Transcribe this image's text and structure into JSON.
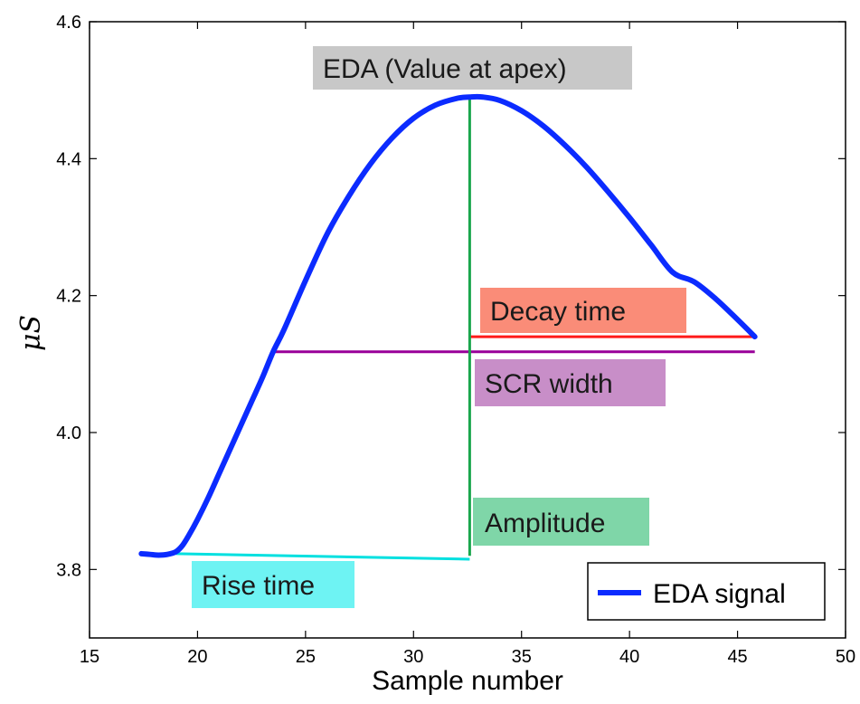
{
  "chart_data": {
    "type": "line",
    "xlabel": "Sample number",
    "ylabel": "μS",
    "xlim": [
      15,
      50
    ],
    "ylim": [
      3.7,
      4.6
    ],
    "xticks": [
      15,
      20,
      25,
      30,
      35,
      40,
      45,
      50
    ],
    "yticks": [
      3.8,
      4.0,
      4.2,
      4.4,
      4.6
    ],
    "xtick_labels": [
      "15",
      "20",
      "25",
      "30",
      "35",
      "40",
      "45",
      "50"
    ],
    "ytick_labels": [
      "3.8",
      "4.0",
      "4.2",
      "4.4",
      "4.6"
    ],
    "grid": false,
    "legend_position": "bottom-right",
    "series": [
      {
        "name": "EDA signal",
        "color": "#0b2bff",
        "x": [
          17.4,
          17.8,
          18.2,
          18.6,
          19.0,
          19.3,
          19.6,
          20.0,
          20.5,
          21.0,
          21.5,
          22.0,
          22.5,
          23.0,
          23.5,
          24.0,
          25.0,
          26.0,
          27.0,
          28.0,
          29.0,
          30.0,
          31.0,
          32.0,
          32.6,
          33.2,
          34.0,
          35.0,
          36.0,
          37.0,
          38.0,
          39.0,
          40.0,
          41.0,
          42.0,
          43.0,
          44.0,
          45.0,
          45.8
        ],
        "y": [
          3.823,
          3.822,
          3.821,
          3.822,
          3.826,
          3.835,
          3.85,
          3.873,
          3.905,
          3.94,
          3.975,
          4.01,
          4.045,
          4.08,
          4.118,
          4.15,
          4.222,
          4.29,
          4.345,
          4.392,
          4.43,
          4.459,
          4.478,
          4.488,
          4.49,
          4.49,
          4.485,
          4.47,
          4.448,
          4.42,
          4.388,
          4.352,
          4.314,
          4.274,
          4.234,
          4.22,
          4.195,
          4.165,
          4.14
        ]
      }
    ],
    "annotations": [
      {
        "id": "apex",
        "label": "EDA (Value at apex)",
        "bg": "#c8c8c8"
      },
      {
        "id": "decay",
        "label": "Decay time",
        "bg": "#fa8c78",
        "line_color": "#ff1a1a",
        "x": [
          32.6,
          45.8
        ],
        "y": [
          4.14,
          4.14
        ]
      },
      {
        "id": "width",
        "label": "SCR width",
        "bg": "#c88ec8",
        "line_color": "#990099",
        "x": [
          23.6,
          45.8
        ],
        "y": [
          4.118,
          4.118
        ]
      },
      {
        "id": "amplitude",
        "label": "Amplitude",
        "bg": "#7fd6a8",
        "line_color": "#1aa64d",
        "x": [
          32.6,
          32.6
        ],
        "y": [
          3.82,
          4.49
        ]
      },
      {
        "id": "rise",
        "label": "Rise time",
        "bg": "#6ef3f3",
        "line_color": "#00e0e0",
        "x": [
          19.0,
          32.6
        ],
        "y": [
          3.823,
          3.815
        ]
      }
    ]
  }
}
